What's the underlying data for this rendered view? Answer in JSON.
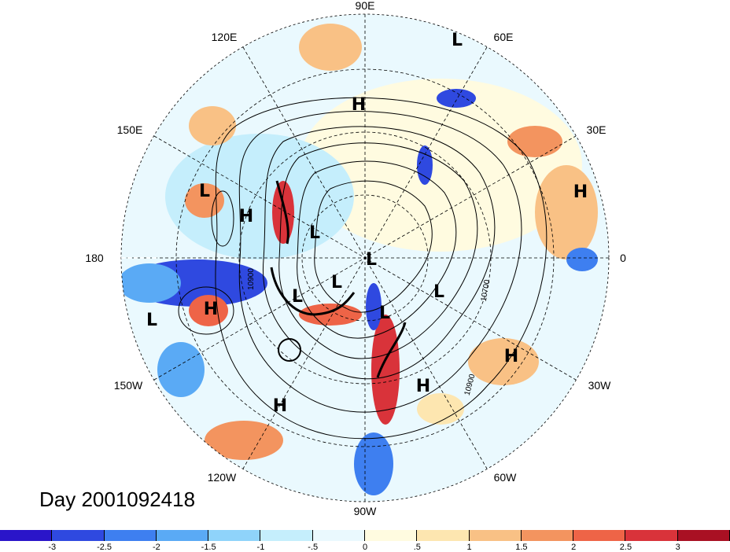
{
  "map": {
    "type": "polar stereographic",
    "lon_labels": [
      {
        "text": "90E"
      },
      {
        "text": "60E"
      },
      {
        "text": "120E"
      },
      {
        "text": "30E"
      },
      {
        "text": "150E"
      },
      {
        "text": "180"
      },
      {
        "text": "0"
      },
      {
        "text": "150W"
      },
      {
        "text": "30W"
      },
      {
        "text": "120W"
      },
      {
        "text": "60W"
      },
      {
        "text": "90W"
      }
    ],
    "pressure_centers": [
      {
        "label": "L"
      },
      {
        "label": "H"
      },
      {
        "label": "L"
      },
      {
        "label": "H"
      },
      {
        "label": "L"
      },
      {
        "label": "L"
      },
      {
        "label": "L"
      },
      {
        "label": "L"
      },
      {
        "label": "L"
      },
      {
        "label": "L"
      },
      {
        "label": "H"
      },
      {
        "label": "L"
      },
      {
        "label": "H"
      },
      {
        "label": "H"
      },
      {
        "label": "H"
      },
      {
        "label": "H"
      }
    ],
    "contour_labels": [
      "10900",
      "10700",
      "10900"
    ],
    "title": "Day 2001092418"
  },
  "colorbar": {
    "colors": [
      "#2a15c9",
      "#2f49e0",
      "#3e7ff0",
      "#5aaaf5",
      "#8fd3fa",
      "#c5eefc",
      "#eaf9fe",
      "#fffbe0",
      "#fde6b0",
      "#f9c185",
      "#f3945f",
      "#ee6447",
      "#d9333a",
      "#a91023"
    ],
    "labels": [
      "-3",
      "-2.5",
      "-2",
      "-1.5",
      "-1",
      "-.5",
      "0",
      ".5",
      "1",
      "1.5",
      "2",
      "2.5",
      "3"
    ]
  }
}
